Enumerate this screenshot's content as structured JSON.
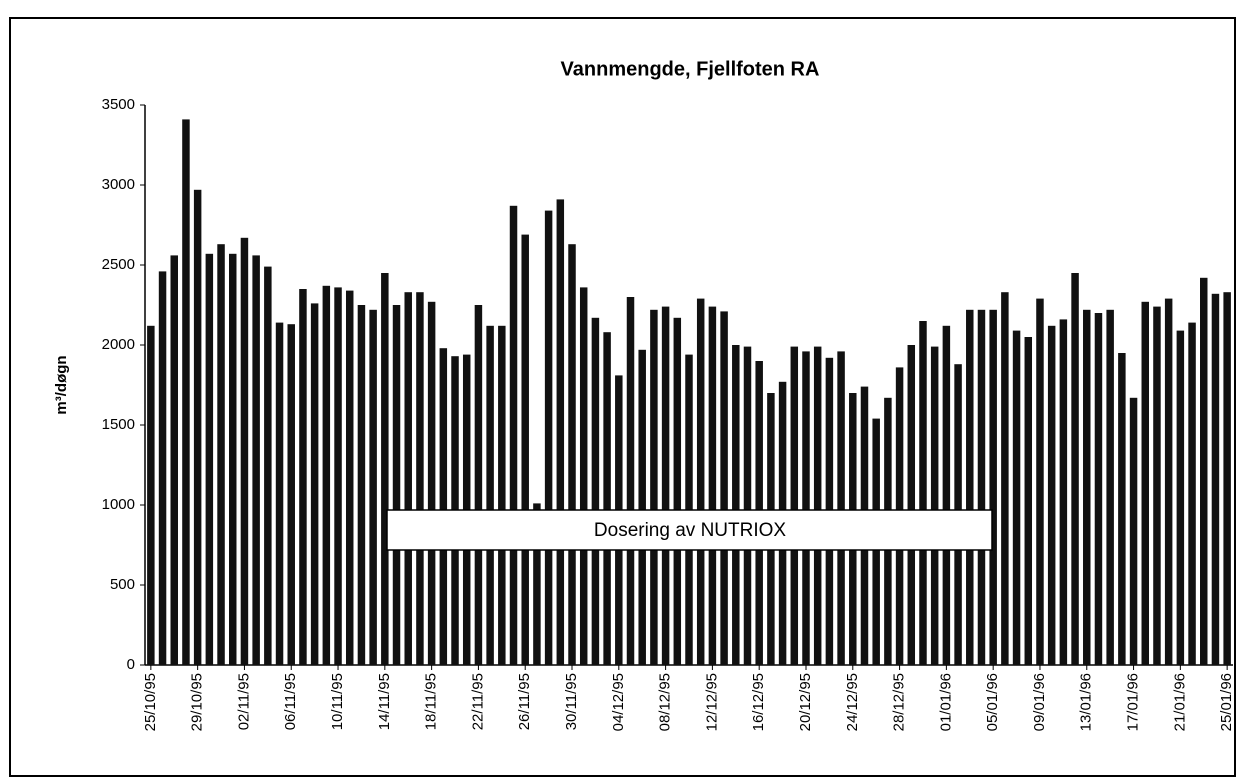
{
  "chart_data": {
    "type": "bar",
    "title": "Vannmengde, Fjellfoten RA",
    "ylabel": "m³/døgn",
    "annotation": "Dosering av NUTRIOX",
    "categories": [
      "25/10/95",
      null,
      null,
      null,
      "29/10/95",
      null,
      null,
      null,
      "02/11/95",
      null,
      null,
      null,
      "06/11/95",
      null,
      null,
      null,
      "10/11/95",
      null,
      null,
      null,
      "14/11/95",
      null,
      null,
      null,
      "18/11/95",
      null,
      null,
      null,
      "22/11/95",
      null,
      null,
      null,
      "26/11/95",
      null,
      null,
      null,
      "30/11/95",
      null,
      null,
      null,
      "04/12/95",
      null,
      null,
      null,
      "08/12/95",
      null,
      null,
      null,
      "12/12/95",
      null,
      null,
      null,
      "16/12/95",
      null,
      null,
      null,
      "20/12/95",
      null,
      null,
      null,
      "24/12/95",
      null,
      null,
      null,
      "28/12/95",
      null,
      null,
      null,
      "01/01/96",
      null,
      null,
      null,
      "05/01/96",
      null,
      null,
      null,
      "09/01/96",
      null,
      null,
      null,
      "13/01/96",
      null,
      null,
      null,
      "17/01/96",
      null,
      null,
      null,
      "21/01/96",
      null,
      null,
      null,
      "25/01/96"
    ],
    "values": [
      2120,
      2460,
      2560,
      3410,
      2970,
      2570,
      2630,
      2570,
      2670,
      2560,
      2490,
      2140,
      2130,
      2350,
      2260,
      2370,
      2360,
      2340,
      2250,
      2220,
      2450,
      2250,
      2330,
      2330,
      2270,
      1980,
      1930,
      1940,
      2250,
      2120,
      2120,
      2870,
      2690,
      1010,
      2840,
      2910,
      2630,
      2360,
      2170,
      2080,
      1810,
      2300,
      1970,
      2220,
      2240,
      2170,
      1940,
      2290,
      2240,
      2210,
      2000,
      1990,
      1900,
      1700,
      1770,
      1990,
      1960,
      1990,
      1920,
      1960,
      1700,
      1740,
      1540,
      1670,
      1860,
      2000,
      2150,
      1990,
      2120,
      1880,
      2220,
      2220,
      2220,
      2330,
      2090,
      2050,
      2290,
      2120,
      2160,
      2450,
      2220,
      2200,
      2220,
      1950,
      1670,
      2270,
      2240,
      2290,
      2090,
      2140,
      2420,
      2320,
      2330
    ],
    "color": "#111111",
    "ylim": [
      0,
      3500
    ],
    "yticks": [
      0,
      500,
      1000,
      1500,
      2000,
      2500,
      3000,
      3500
    ],
    "grid": false
  }
}
